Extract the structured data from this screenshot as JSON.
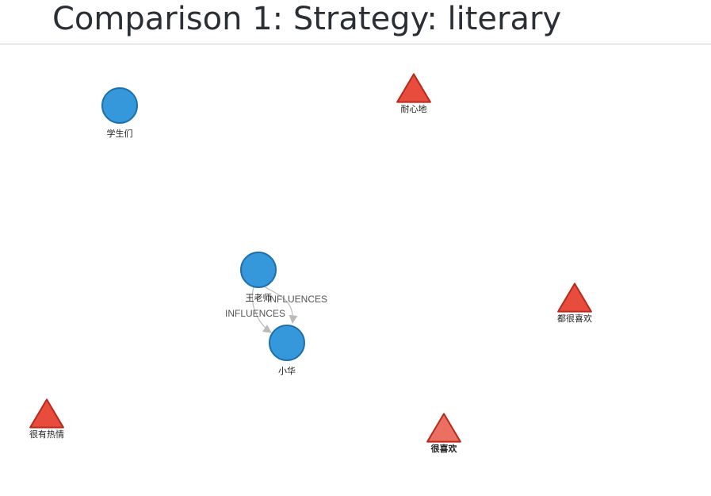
{
  "title": "Comparison 1: Strategy: literary",
  "graph": {
    "nodes": [
      {
        "id": "xueshengmen",
        "label": "学生们",
        "shape": "circle",
        "color": "#3498db",
        "stroke": "#1f6fad"
      },
      {
        "id": "naixindi",
        "label": "耐心地",
        "shape": "triangle",
        "color": "#e74c3c",
        "stroke": "#b8291c"
      },
      {
        "id": "wanglaoshi",
        "label": "王老师",
        "shape": "circle",
        "color": "#3498db",
        "stroke": "#1f6fad"
      },
      {
        "id": "xiaohua",
        "label": "小华",
        "shape": "circle",
        "color": "#3498db",
        "stroke": "#1f6fad"
      },
      {
        "id": "douhenxihuan",
        "label": "都很喜欢",
        "shape": "triangle",
        "color": "#e74c3c",
        "stroke": "#b8291c"
      },
      {
        "id": "henyourexing",
        "label": "很有热情",
        "shape": "triangle",
        "color": "#e74c3c",
        "stroke": "#b8291c"
      },
      {
        "id": "henxihuan",
        "label": "很喜欢",
        "shape": "triangle",
        "color": "#ec6f63",
        "stroke": "#b8291c",
        "selected": true
      }
    ],
    "edges": [
      {
        "from": "wanglaoshi",
        "to": "xiaohua",
        "label": "INFLUENCES",
        "color": "#bbbbbb"
      },
      {
        "from": "wanglaoshi",
        "to": "xiaohua",
        "label": "INFLUENCES",
        "color": "#bbbbbb"
      }
    ]
  }
}
